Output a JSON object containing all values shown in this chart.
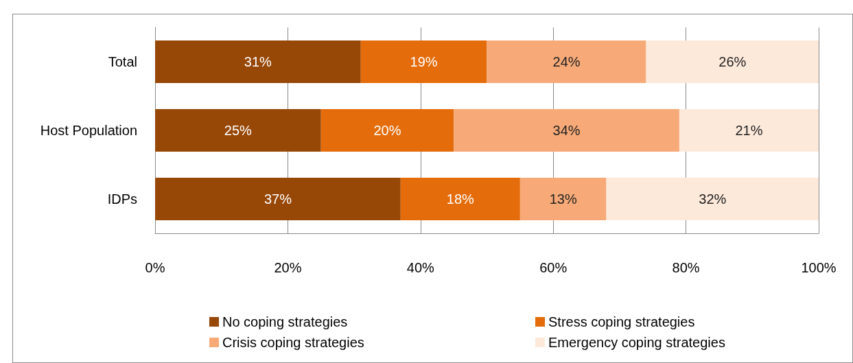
{
  "chart_data": {
    "type": "bar",
    "orientation": "horizontal",
    "stacked": true,
    "categories": [
      "Total",
      "Host Population",
      "IDPs"
    ],
    "series": [
      {
        "name": "No coping strategies",
        "color": "#974706",
        "values": [
          31,
          25,
          37
        ],
        "value_labels": [
          "31%",
          "25%",
          "37%"
        ]
      },
      {
        "name": "Stress coping strategies",
        "color": "#e46c0a",
        "values": [
          19,
          20,
          18
        ],
        "value_labels": [
          "19%",
          "20%",
          "18%"
        ]
      },
      {
        "name": "Crisis coping strategies",
        "color": "#f7aa78",
        "values": [
          24,
          34,
          13
        ],
        "value_labels": [
          "24%",
          "34%",
          "13%"
        ]
      },
      {
        "name": "Emergency coping strategies",
        "color": "#fde9da",
        "values": [
          26,
          21,
          32
        ],
        "value_labels": [
          "26%",
          "21%",
          "32%"
        ]
      }
    ],
    "xlim": [
      0,
      100
    ],
    "xticks": [
      {
        "value": 0,
        "label": "0%"
      },
      {
        "value": 20,
        "label": "20%"
      },
      {
        "value": 40,
        "label": "40%"
      },
      {
        "value": 60,
        "label": "60%"
      },
      {
        "value": 80,
        "label": "80%"
      },
      {
        "value": 100,
        "label": "100%"
      }
    ],
    "grid": "x",
    "legend": "bottom"
  }
}
